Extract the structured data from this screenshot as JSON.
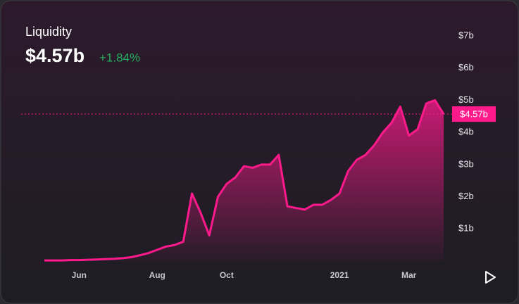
{
  "chart_data": {
    "type": "area",
    "title": "Liquidity",
    "current_value": 4.57,
    "current_value_label": "$4.57b",
    "change": "+1.84%",
    "categories": [
      null,
      null,
      null,
      null,
      "Jun",
      null,
      null,
      null,
      null,
      null,
      null,
      null,
      null,
      "Aug",
      null,
      null,
      null,
      null,
      null,
      null,
      null,
      "Oct",
      null,
      null,
      null,
      null,
      null,
      null,
      null,
      null,
      null,
      null,
      null,
      null,
      "2021",
      null,
      null,
      null,
      null,
      null,
      null,
      null,
      "Mar",
      null,
      null,
      null,
      null
    ],
    "series": [
      {
        "name": "Liquidity",
        "color": "#ff1a8c",
        "values": [
          0.02,
          0.02,
          0.02,
          0.03,
          0.03,
          0.04,
          0.05,
          0.06,
          0.07,
          0.09,
          0.12,
          0.18,
          0.25,
          0.35,
          0.45,
          0.5,
          0.6,
          2.1,
          1.5,
          0.8,
          2.0,
          2.4,
          2.6,
          2.95,
          2.9,
          3.0,
          3.0,
          3.3,
          1.7,
          1.65,
          1.6,
          1.75,
          1.75,
          1.9,
          2.1,
          2.8,
          3.15,
          3.3,
          3.6,
          4.0,
          4.3,
          4.8,
          3.9,
          4.1,
          4.9,
          5.0,
          4.57
        ]
      }
    ],
    "ylim": [
      0,
      7
    ],
    "yticks": [
      {
        "value": 1,
        "label": "$1b"
      },
      {
        "value": 2,
        "label": "$2b"
      },
      {
        "value": 3,
        "label": "$3b"
      },
      {
        "value": 4,
        "label": "$4b"
      },
      {
        "value": 5,
        "label": "$5b"
      },
      {
        "value": 6,
        "label": "$6b"
      },
      {
        "value": 7,
        "label": "$7b"
      }
    ]
  }
}
